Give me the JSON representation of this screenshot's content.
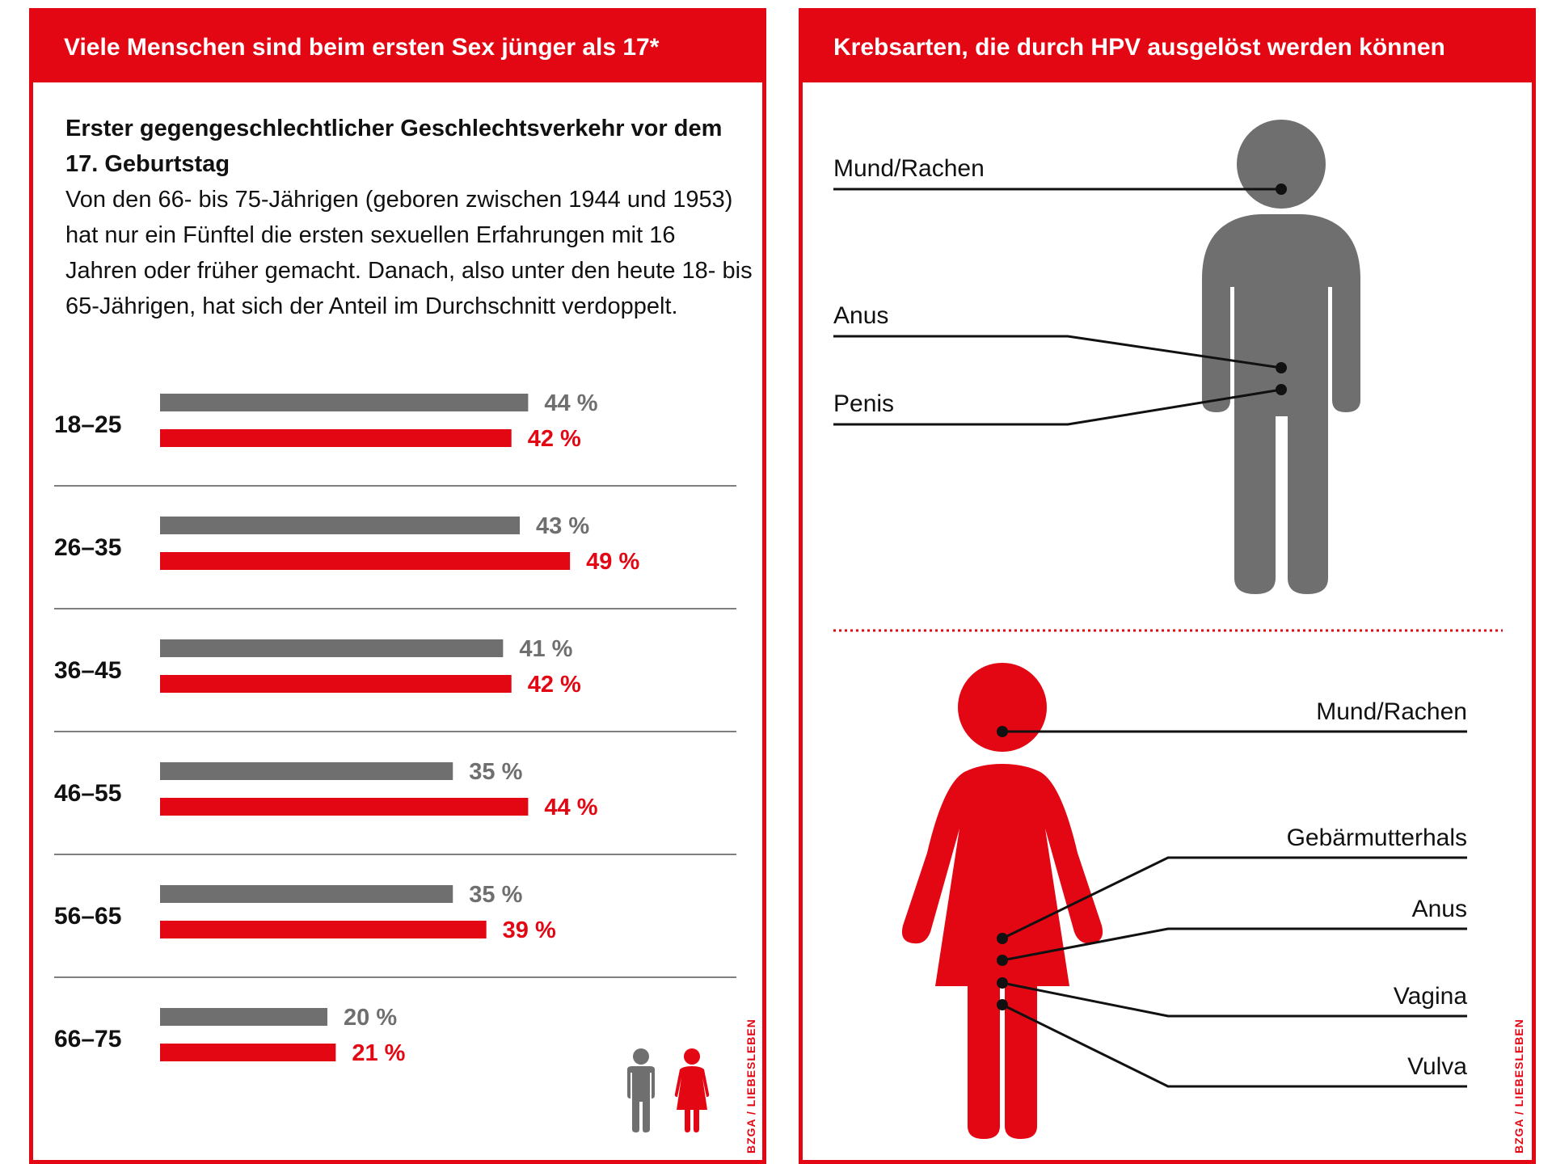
{
  "left_panel": {
    "header": "Viele Menschen sind beim ersten Sex jünger als 17*",
    "lead": "Erster gegengeschlechtlicher Geschlechtsverkehr vor dem 17. Geburtstag",
    "description": "Von den 66- bis 75-Jährigen (geboren zwischen 1944 und 1953) hat nur ein Fünftel die ersten sexuellen Erfahrungen mit 16 Jahren oder früher gemacht. Danach, also unter den heute 18- bis 65-Jährigen, hat sich der Anteil im Durchschnitt verdoppelt.",
    "credit": "BZGA / LIEBESLEBEN",
    "legend_icons": [
      "male-figure-icon",
      "female-figure-icon"
    ]
  },
  "chart_data": {
    "type": "bar",
    "orientation": "horizontal",
    "categories": [
      "18–25",
      "26–35",
      "36–45",
      "46–55",
      "56–65",
      "66–75"
    ],
    "series": [
      {
        "values": [
          44,
          43,
          41,
          35,
          35,
          20
        ],
        "labels": [
          "44 %",
          "43 %",
          "41 %",
          "35 %",
          "35 %",
          "20 %"
        ],
        "color": "#6f6f6f",
        "icon": "male-figure-icon"
      },
      {
        "values": [
          42,
          49,
          42,
          44,
          39,
          21
        ],
        "labels": [
          "42 %",
          "49 %",
          "42 %",
          "44 %",
          "39 %",
          "21 %"
        ],
        "color": "#e30613",
        "icon": "female-figure-icon"
      }
    ],
    "unit": "%",
    "xlim": [
      0,
      60
    ],
    "grid": false,
    "separators": true
  },
  "right_panel": {
    "header": "Krebsarten, die durch HPV ausgelöst werden können",
    "male_labels": [
      "Mund/Rachen",
      "Anus",
      "Penis"
    ],
    "female_labels": [
      "Mund/Rachen",
      "Gebärmutterhals",
      "Anus",
      "Vagina",
      "Vulva"
    ],
    "credit": "BZGA / LIEBESLEBEN"
  },
  "colors": {
    "accent": "#e30613",
    "male": "#6f6f6f",
    "text": "#111111"
  }
}
